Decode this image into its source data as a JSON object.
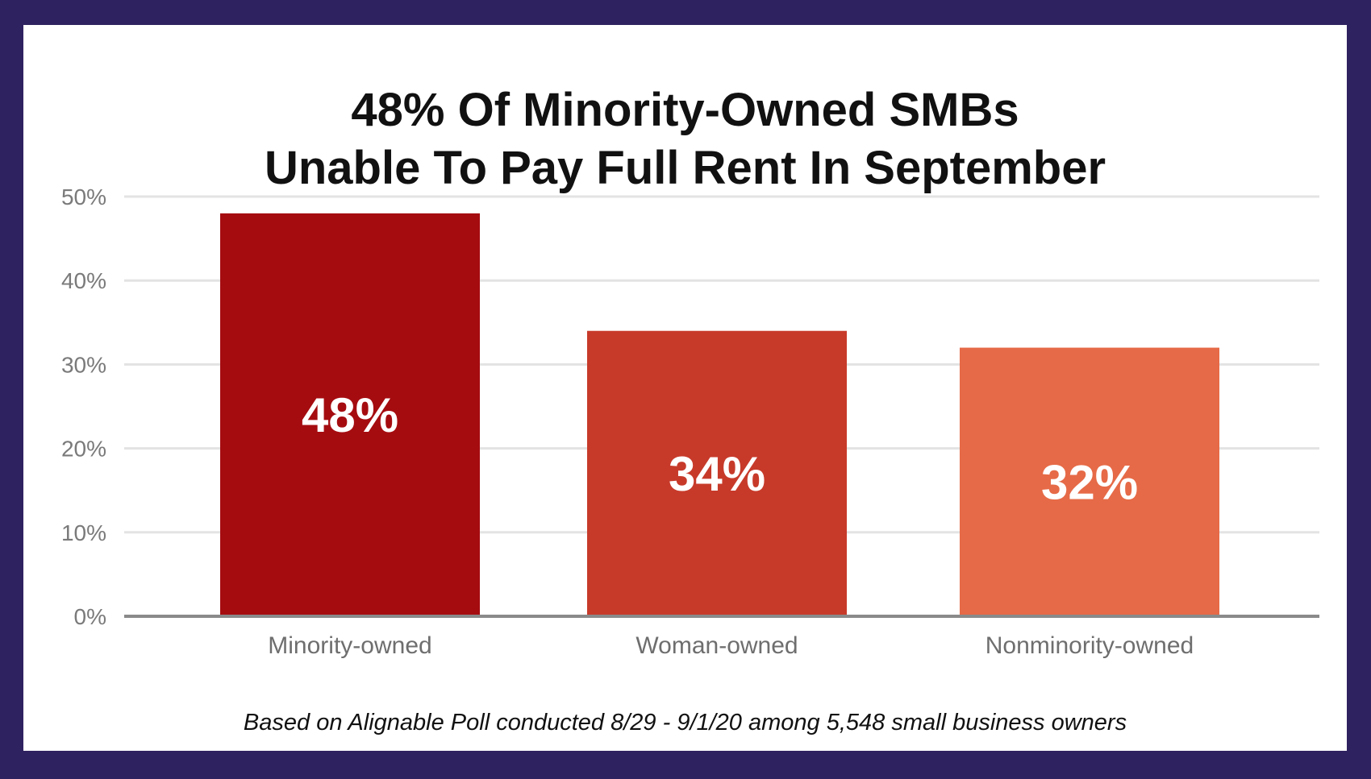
{
  "title_lines": [
    "48% Of Minority-Owned SMBs",
    "Unable To Pay Full Rent In September"
  ],
  "footnote": "Based on Alignable Poll conducted 8/29 - 9/1/20 among 5,548 small business owners",
  "colors": {
    "frame": "#2f2260",
    "background": "#ffffff",
    "gridline": "#e3e3e3",
    "axis": "#8a8a8a",
    "tick_label": "#7a7a7a",
    "category_label": "#6e6e6e",
    "data_label": "#ffffff"
  },
  "chart_data": {
    "type": "bar",
    "title": "48% Of Minority-Owned SMBs Unable To Pay Full Rent In September",
    "categories": [
      "Minority-owned",
      "Woman-owned",
      "Nonminority-owned"
    ],
    "values": [
      48,
      34,
      32
    ],
    "value_labels": [
      "48%",
      "34%",
      "32%"
    ],
    "bar_colors": [
      "#a50c10",
      "#c73a2a",
      "#e66a47"
    ],
    "y_ticks": [
      0,
      10,
      20,
      30,
      40,
      50
    ],
    "y_tick_labels": [
      "0%",
      "10%",
      "20%",
      "30%",
      "40%",
      "50%"
    ],
    "ylim": [
      0,
      50
    ],
    "xlabel": "",
    "ylabel": "",
    "grid": true,
    "legend": "none"
  }
}
